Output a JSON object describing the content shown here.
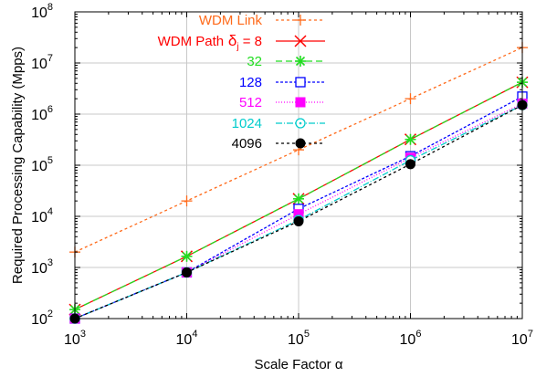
{
  "chart_data": {
    "type": "line",
    "xlabel": "Scale Factor α",
    "ylabel": "Required Processing Capability (Mpps)",
    "x_scale": "log",
    "y_scale": "log",
    "xlim": [
      1000,
      10000000
    ],
    "ylim": [
      100,
      100000000
    ],
    "grid": true,
    "legend_position": "top-left",
    "x_ticks": [
      {
        "base": "10",
        "exp": "3",
        "value": 1000
      },
      {
        "base": "10",
        "exp": "4",
        "value": 10000
      },
      {
        "base": "10",
        "exp": "5",
        "value": 100000
      },
      {
        "base": "10",
        "exp": "6",
        "value": 1000000
      },
      {
        "base": "10",
        "exp": "7",
        "value": 10000000
      }
    ],
    "y_ticks": [
      {
        "base": "10",
        "exp": "2",
        "value": 100
      },
      {
        "base": "10",
        "exp": "3",
        "value": 1000
      },
      {
        "base": "10",
        "exp": "4",
        "value": 10000
      },
      {
        "base": "10",
        "exp": "5",
        "value": 100000
      },
      {
        "base": "10",
        "exp": "6",
        "value": 1000000
      },
      {
        "base": "10",
        "exp": "7",
        "value": 10000000
      },
      {
        "base": "10",
        "exp": "8",
        "value": 100000000
      }
    ],
    "series": [
      {
        "name": "WDM Link",
        "color": "#ff6a1a",
        "dash": "3,3",
        "marker": "plus",
        "x": [
          1000,
          10000,
          100000,
          1000000,
          10000000
        ],
        "y": [
          2000,
          20000,
          200000,
          2000000,
          20000000
        ]
      },
      {
        "name": "WDM Path",
        "name_sub": "j",
        "name_suffix": " = 8",
        "color": "#ff0000",
        "dash": "none",
        "marker": "cross",
        "x": [
          1000,
          10000,
          100000,
          1000000,
          10000000
        ],
        "y": [
          150,
          1650,
          22000,
          320000,
          4200000
        ]
      },
      {
        "name": "32",
        "color": "#22dd22",
        "dash": "7,4",
        "marker": "asterisk",
        "x": [
          1000,
          10000,
          100000,
          1000000,
          10000000
        ],
        "y": [
          150,
          1650,
          22000,
          320000,
          4200000
        ]
      },
      {
        "name": "128",
        "color": "#0000ff",
        "dash": "3,2",
        "marker": "square-open",
        "x": [
          1000,
          10000,
          100000,
          1000000,
          10000000
        ],
        "y": [
          100,
          800,
          14000,
          150000,
          2200000
        ]
      },
      {
        "name": "512",
        "color": "#ff00ff",
        "dash": "1,2",
        "marker": "square-filled",
        "x": [
          1000,
          10000,
          100000,
          1000000,
          10000000
        ],
        "y": [
          100,
          800,
          11000,
          140000,
          1600000
        ]
      },
      {
        "name": "1024",
        "color": "#00cccc",
        "dash": "7,2,1,2",
        "marker": "circle-open",
        "x": [
          1000,
          10000,
          100000,
          1000000,
          10000000
        ],
        "y": [
          100,
          800,
          8500,
          125000,
          1500000
        ]
      },
      {
        "name": "4096",
        "color": "#000000",
        "dash": "3,3",
        "marker": "circle-filled",
        "x": [
          1000,
          10000,
          100000,
          1000000,
          10000000
        ],
        "y": [
          100,
          800,
          8000,
          105000,
          1500000
        ]
      }
    ]
  }
}
